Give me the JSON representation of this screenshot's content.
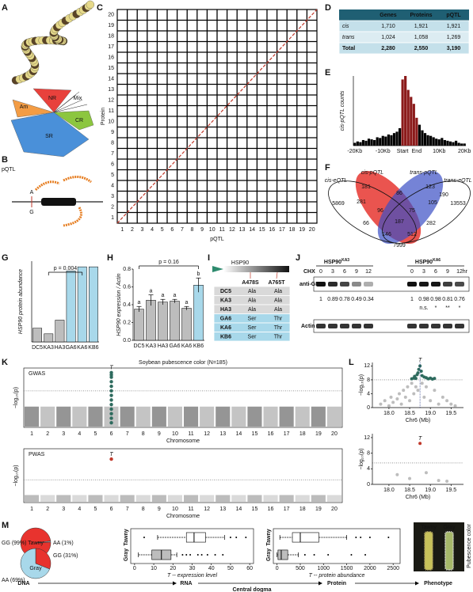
{
  "panel_labels": [
    "A",
    "B",
    "C",
    "D",
    "E",
    "F",
    "G",
    "H",
    "I",
    "J",
    "K",
    "L",
    "M"
  ],
  "panel_a": {
    "labels": [
      "Am",
      "NR",
      "Mix",
      "CR",
      "SR"
    ]
  },
  "panel_b": {
    "label": "pQTL",
    "alleles": [
      "A",
      "G"
    ]
  },
  "table_d": {
    "header": [
      "Genes",
      "Proteins",
      "pQTL"
    ],
    "rows": [
      [
        "cis",
        "1,710",
        "1,921",
        "1,921"
      ],
      [
        "trans",
        "1,024",
        "1,058",
        "1,269"
      ],
      [
        "Total",
        "2,280",
        "2,550",
        "3,190"
      ]
    ]
  },
  "venn": {
    "sets": [
      "cis-eQTL",
      "cis-pQTL",
      "trans-pQTL",
      "trans-eQTL"
    ],
    "counts": [
      5869,
      181,
      86,
      123,
      190,
      13553,
      281,
      96,
      75,
      105,
      66,
      187,
      282,
      146,
      512,
      7999
    ]
  },
  "table_i": {
    "gene": "HSP90",
    "header": [
      "A478S",
      "A765T"
    ],
    "rows": [
      [
        "DC5",
        "Ala",
        "Ala"
      ],
      [
        "KA3",
        "Ala",
        "Ala"
      ],
      [
        "HA3",
        "Ala",
        "Ala"
      ],
      [
        "GA6",
        "Ser",
        "Thr"
      ],
      [
        "KA6",
        "Ser",
        "Thr"
      ],
      [
        "KB6",
        "Ser",
        "Thr"
      ]
    ]
  },
  "panel_j": {
    "treatment": "CHX",
    "groups": [
      {
        "name": "HSP90",
        "sup": "KA3"
      },
      {
        "name": "HSP90",
        "sup": "KA6"
      }
    ],
    "times": [
      0,
      3,
      6,
      9,
      12
    ],
    "unit": "hr",
    "rows": [
      "anti-GFP",
      "Actin"
    ],
    "ratios": [
      [
        1,
        0.89,
        0.78,
        0.49,
        0.34
      ],
      [
        1,
        0.98,
        0.98,
        0.81,
        0.76
      ]
    ],
    "significance": [
      "n.s.",
      "*",
      "**",
      "*"
    ]
  },
  "panel_m": {
    "photo_labels": [
      "Tawny",
      "Gray"
    ],
    "photo_title": "Pubescence color",
    "flow": [
      "DNA",
      "RNA",
      "Protein",
      "Phenotype"
    ],
    "flow_title": "Central dogma"
  },
  "chart_data": [
    {
      "type": "grid",
      "xlabel": "pQTL",
      "ylabel": "Protein",
      "categories": [
        1,
        2,
        3,
        4,
        5,
        6,
        7,
        8,
        9,
        10,
        11,
        12,
        13,
        14,
        15,
        16,
        17,
        18,
        19,
        20
      ],
      "diagonal_color": "#c0392b"
    },
    {
      "type": "bar",
      "ylabel": "cis-pQTL counts",
      "ylim": [
        0,
        100
      ],
      "categories": [
        "-20Kb",
        null,
        null,
        null,
        null,
        null,
        null,
        null,
        null,
        null,
        "-10Kb",
        null,
        null,
        null,
        null,
        null,
        null,
        "Start",
        null,
        null,
        null,
        null,
        "End",
        null,
        null,
        null,
        null,
        null,
        null,
        null,
        "10Kb",
        null,
        null,
        null,
        null,
        null,
        null,
        null,
        null,
        "20Kb"
      ],
      "values": [
        4,
        6,
        5,
        8,
        7,
        10,
        9,
        8,
        12,
        11,
        14,
        13,
        16,
        15,
        18,
        20,
        25,
        95,
        100,
        80,
        70,
        60,
        40,
        30,
        22,
        18,
        15,
        14,
        12,
        10,
        9,
        11,
        8,
        7,
        6,
        5,
        7,
        4,
        3,
        3
      ],
      "colors": [
        "#000",
        "#000",
        "#000",
        "#000",
        "#000",
        "#000",
        "#000",
        "#000",
        "#000",
        "#000",
        "#000",
        "#000",
        "#000",
        "#000",
        "#000",
        "#000",
        "#000",
        "#8b1a1a",
        "#8b1a1a",
        "#8b1a1a",
        "#8b1a1a",
        "#8b1a1a",
        "#8b1a1a",
        "#000",
        "#000",
        "#000",
        "#000",
        "#000",
        "#000",
        "#000",
        "#000",
        "#000",
        "#000",
        "#000",
        "#000",
        "#000",
        "#000",
        "#000",
        "#000",
        "#000"
      ]
    },
    {
      "type": "bar",
      "ylabel": "HSP90 protein abundance",
      "ylim": [
        0,
        100
      ],
      "categories": [
        "DC5",
        "KA3",
        "HA3",
        "GA6",
        "KA6",
        "KB6"
      ],
      "values": [
        17,
        10,
        27,
        88,
        93,
        93
      ],
      "colors": [
        "#bdbdbd",
        "#bdbdbd",
        "#bdbdbd",
        "#a8d8ea",
        "#a8d8ea",
        "#a8d8ea"
      ],
      "annotation": "p = 0.004"
    },
    {
      "type": "bar",
      "ylabel": "HSP90 expression / Actin",
      "ylim": [
        0,
        0.8
      ],
      "yticks": [
        {
          "value": 0,
          "label": "0.0"
        },
        0.2,
        0.4,
        0.6,
        0.8
      ],
      "categories": [
        "DC5",
        "KA3",
        "HA3",
        "GA6",
        "KA6",
        "KB6"
      ],
      "values": [
        0.35,
        0.45,
        0.43,
        0.44,
        0.36,
        0.62
      ],
      "errors": [
        0.03,
        0.06,
        0.03,
        0.02,
        0.02,
        0.08
      ],
      "letters": [
        "a",
        "a",
        "a",
        "a",
        "a",
        "b"
      ],
      "colors": [
        "#bdbdbd",
        "#bdbdbd",
        "#bdbdbd",
        "#bdbdbd",
        "#bdbdbd",
        "#a8d8ea"
      ],
      "annotation": "p = 0.16"
    },
    {
      "type": "manhattan",
      "title": "Soybean pubescence color (N=185)",
      "name": "GWAS",
      "xlabel": "Chromosome",
      "ylabel": "−log₁₀(p)",
      "categories": [
        1,
        2,
        3,
        4,
        5,
        6,
        7,
        8,
        9,
        10,
        11,
        12,
        13,
        14,
        15,
        16,
        17,
        18,
        19,
        20
      ],
      "ylim": [
        0,
        13
      ],
      "threshold": 8,
      "peak": {
        "chromosome": 6,
        "values": [
          1,
          2,
          3,
          4,
          5,
          6,
          7,
          8,
          9,
          10,
          11,
          11.5,
          12
        ],
        "label": "T",
        "color": "#2e6b5e"
      }
    },
    {
      "type": "manhattan",
      "name": "PWAS",
      "xlabel": "Chromosome",
      "ylabel": "−log₁₀(p)",
      "categories": [
        1,
        2,
        3,
        4,
        5,
        6,
        7,
        8,
        9,
        10,
        11,
        12,
        13,
        14,
        15,
        16,
        17,
        18,
        19,
        20
      ],
      "ylim": [
        0,
        13
      ],
      "threshold": 5.5,
      "peak": {
        "chromosome": 6,
        "values": [
          10.5
        ],
        "label": "T",
        "color": "#c0392b"
      }
    },
    {
      "type": "scatter",
      "xlabel": "Chr6 (Mb)",
      "ylabel": "−log₁₀(p)",
      "xlim": [
        17.6,
        19.8
      ],
      "ylim": [
        0,
        13
      ],
      "xticks": [
        {
          "value": 18,
          "label": "18.0"
        },
        18.5,
        {
          "value": 19,
          "label": "19.0"
        },
        19.5
      ],
      "yticks": [
        0,
        4,
        8,
        12
      ],
      "threshold": 8,
      "marker": {
        "x": 18.75,
        "label": "T",
        "line": true
      },
      "series": [
        {
          "color": "#bdbdbd",
          "x": [
            17.8,
            17.9,
            18.0,
            18.05,
            18.1,
            18.2,
            18.25,
            18.3,
            18.35,
            18.4,
            18.45,
            18.5,
            18.55,
            18.6,
            18.65,
            18.7,
            18.8,
            18.85,
            18.9,
            19.0,
            19.1,
            19.2,
            19.3,
            19.4,
            19.5,
            19.6
          ],
          "y": [
            1,
            2,
            0.5,
            3,
            1.5,
            2.5,
            4,
            1,
            5,
            3,
            6,
            2,
            7,
            4,
            6,
            5,
            7,
            3,
            6,
            2,
            5,
            1,
            3,
            2,
            1,
            0.5
          ]
        },
        {
          "color": "#2e6b5e",
          "x": [
            18.55,
            18.6,
            18.62,
            18.65,
            18.68,
            18.7,
            18.72,
            18.75,
            18.78,
            18.8,
            18.85,
            18.9,
            18.95,
            19.0,
            19.05,
            19.1
          ],
          "y": [
            8.3,
            8.5,
            9,
            8.4,
            9.5,
            10,
            11,
            12,
            10.5,
            9.2,
            8.8,
            8.6,
            8.3,
            8.5,
            8.2,
            8.4
          ]
        }
      ]
    },
    {
      "type": "scatter",
      "xlabel": "Chr6 (Mb)",
      "ylabel": "−log₁₀(p)",
      "xlim": [
        17.6,
        19.8
      ],
      "ylim": [
        0,
        13
      ],
      "xticks": [
        {
          "value": 18,
          "label": "18.0"
        },
        18.5,
        {
          "value": 19,
          "label": "19.0"
        },
        19.5
      ],
      "yticks": [
        0,
        4,
        8,
        12
      ],
      "threshold": 5.5,
      "marker": {
        "x": 18.75,
        "label": "T",
        "line": false
      },
      "series": [
        {
          "color": "#bdbdbd",
          "x": [
            18.2,
            18.5,
            18.9,
            19.2,
            19.4
          ],
          "y": [
            2.5,
            1.5,
            3,
            1,
            0.8
          ]
        },
        {
          "color": "#c0392b",
          "x": [
            18.75
          ],
          "y": [
            10.5
          ]
        }
      ]
    },
    {
      "type": "box",
      "xlabel": "T -- expression level",
      "xlim": [
        -2,
        62
      ],
      "xticks": [
        0,
        10,
        20,
        30,
        40,
        50,
        60
      ],
      "series": [
        {
          "name": "Tawny",
          "color": "#ffffff",
          "min": 12,
          "q1": 27,
          "median": 31,
          "q3": 37,
          "max": 47,
          "outliers": [
            5,
            50,
            53,
            58
          ]
        },
        {
          "name": "Gray",
          "color": "#bdbdbd",
          "min": 2,
          "q1": 9,
          "median": 14,
          "q3": 19,
          "max": 22,
          "outliers": [
            25,
            27,
            29,
            33,
            35,
            38,
            42,
            46
          ]
        }
      ]
    },
    {
      "type": "box",
      "xlabel": "T -- protein abundance",
      "xlim": [
        -80,
        2650
      ],
      "xticks": [
        0,
        500,
        1000,
        1500,
        2000,
        2500
      ],
      "series": [
        {
          "name": "Tawny",
          "color": "#ffffff",
          "min": 60,
          "q1": 330,
          "median": 500,
          "q3": 900,
          "max": 1500,
          "outliers": [
            1700,
            1800,
            2000,
            2400
          ]
        },
        {
          "name": "Gray",
          "color": "#bdbdbd",
          "min": 0,
          "q1": 20,
          "median": 90,
          "q3": 230,
          "max": 460,
          "outliers": [
            600,
            800,
            1100,
            1600,
            1900
          ]
        }
      ]
    },
    {
      "type": "pie",
      "title": "Tawny",
      "startangle": -3.6,
      "values": [
        99,
        1
      ],
      "value_labels": [
        "GG (99%)",
        "AA (1%)"
      ],
      "colors": [
        "#e8332e",
        "#a8d8ea"
      ]
    },
    {
      "type": "pie",
      "title": "Gray",
      "startangle": -90,
      "values": [
        31,
        69
      ],
      "value_labels": [
        "GG (31%)",
        "AA (69%)"
      ],
      "colors": [
        "#e8332e",
        "#a8d8ea"
      ]
    }
  ]
}
